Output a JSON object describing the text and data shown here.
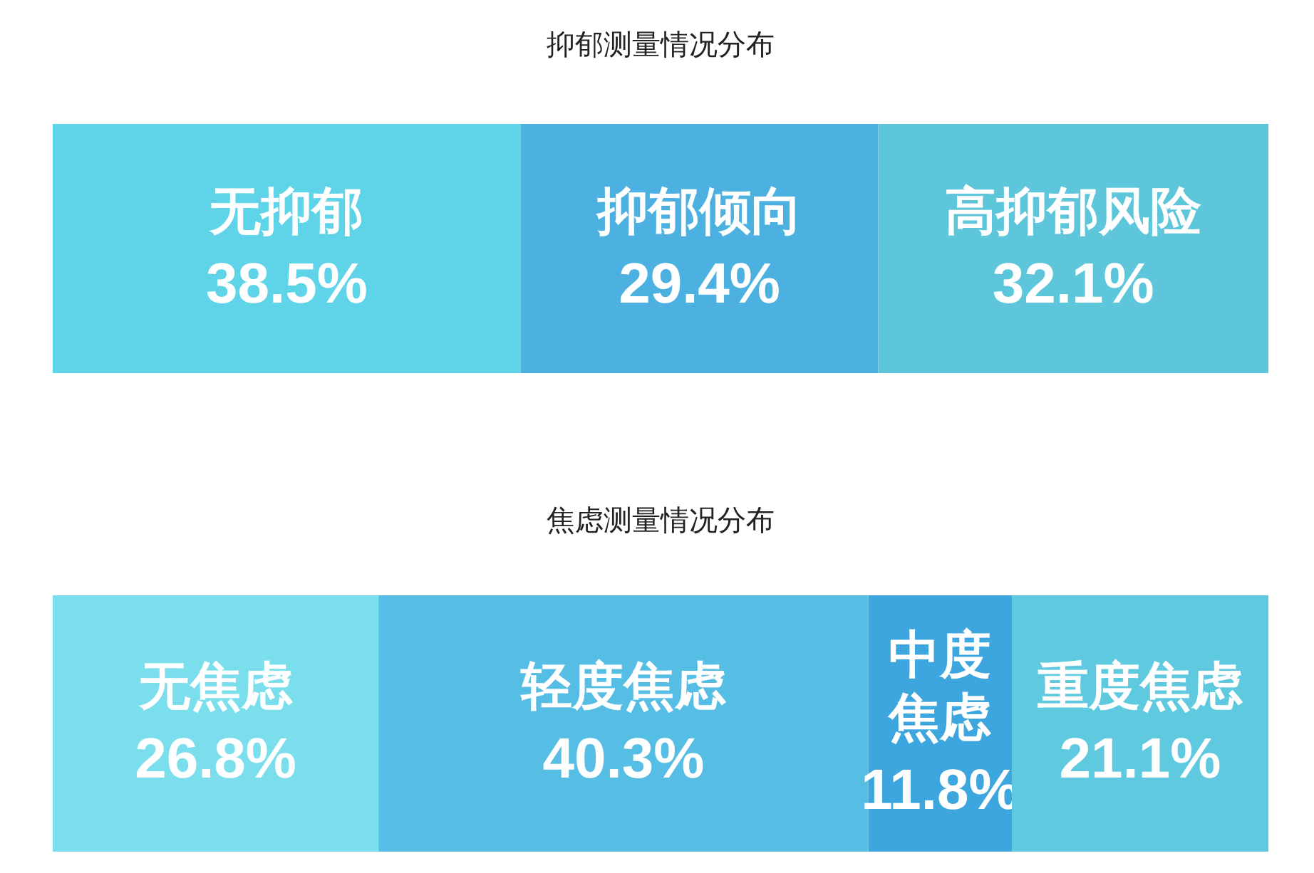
{
  "chart_data": [
    {
      "type": "bar",
      "orientation": "horizontal",
      "stacked": true,
      "title": "抑郁测量情况分布",
      "categories": [
        null
      ],
      "series": [
        {
          "name": "无抑郁",
          "color": "#5fd4e8",
          "values": [
            38.5
          ],
          "value_labels": [
            "38.5%"
          ]
        },
        {
          "name": "抑郁倾向",
          "color": "#4cb0e0",
          "values": [
            29.4
          ],
          "value_labels": [
            "29.4%"
          ]
        },
        {
          "name": "高抑郁风险",
          "color": "#5ec6da",
          "values": [
            32.1
          ],
          "value_labels": [
            "32.1%"
          ]
        }
      ]
    },
    {
      "type": "bar",
      "orientation": "horizontal",
      "stacked": true,
      "title": "焦虑测量情况分布",
      "categories": [
        null
      ],
      "series": [
        {
          "name": "无焦虑",
          "color": "#7adeec",
          "values": [
            26.8
          ],
          "value_labels": [
            "26.8%"
          ]
        },
        {
          "name": "轻度焦虑",
          "color": "#56bde4",
          "values": [
            40.3
          ],
          "value_labels": [
            "40.3%"
          ]
        },
        {
          "name": "中度焦虑",
          "color": "#3ea6de",
          "values": [
            11.8
          ],
          "value_labels": [
            "11.8%"
          ]
        },
        {
          "name": "重度焦虑",
          "color": "#5ec9df",
          "values": [
            21.1
          ],
          "value_labels": [
            "21.1%"
          ]
        }
      ]
    }
  ]
}
